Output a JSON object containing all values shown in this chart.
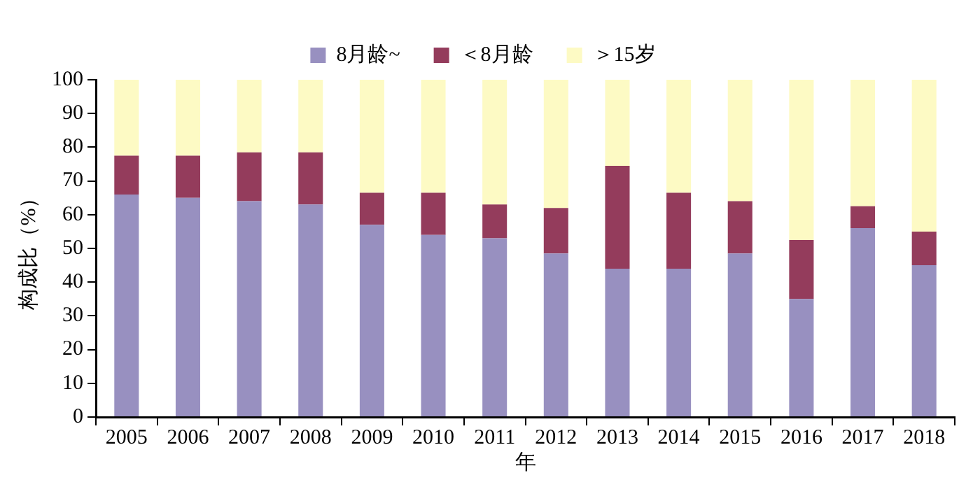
{
  "chart_data": {
    "type": "bar",
    "stacked": true,
    "xlabel": "年",
    "ylabel": "构成比（%）",
    "legend": "top",
    "grid": false,
    "categories": [
      "2005",
      "2006",
      "2007",
      "2008",
      "2009",
      "2010",
      "2011",
      "2012",
      "2013",
      "2014",
      "2015",
      "2016",
      "2017",
      "2018"
    ],
    "ylim": [
      0,
      100
    ],
    "yticks": [
      0,
      10,
      20,
      30,
      40,
      50,
      60,
      70,
      80,
      90,
      100
    ],
    "series": [
      {
        "name": "8月龄~",
        "color": "#9890c0",
        "values": [
          66,
          65,
          64,
          63,
          57,
          54,
          53,
          48.5,
          44,
          44,
          48.5,
          35,
          56,
          45
        ]
      },
      {
        "name": "＜8月龄",
        "color": "#943c5c",
        "values": [
          11.5,
          12.5,
          14.5,
          15.5,
          9.5,
          12.5,
          10,
          13.5,
          30.5,
          22.5,
          15.5,
          17.5,
          6.5,
          10
        ]
      },
      {
        "name": "＞15岁",
        "color": "#fdfac4",
        "values": [
          22.5,
          22.5,
          21.5,
          21.5,
          33.5,
          33.5,
          37,
          38,
          25.5,
          33.5,
          36,
          47.5,
          37.5,
          45
        ]
      }
    ]
  }
}
